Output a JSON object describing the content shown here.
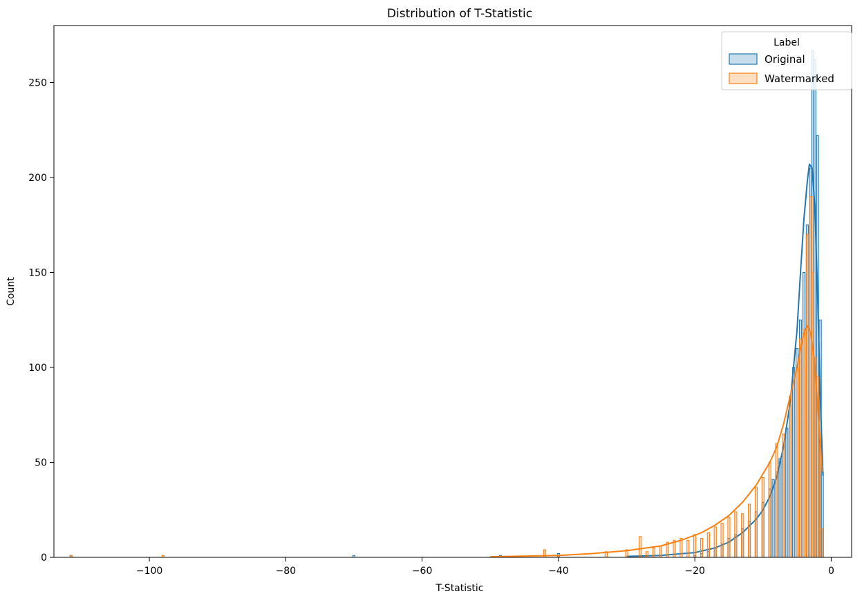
{
  "chart_data": {
    "type": "histogram",
    "title": "Distribution of T-Statistic",
    "xlabel": "T-Statistic",
    "ylabel": "Count",
    "xlim": [
      -114,
      3
    ],
    "ylim": [
      0,
      280
    ],
    "xticks": [
      -100,
      -80,
      -60,
      -40,
      -20,
      0
    ],
    "xtick_labels": [
      "−100",
      "−80",
      "−60",
      "−40",
      "−20",
      "0"
    ],
    "yticks": [
      0,
      50,
      100,
      150,
      200,
      250
    ],
    "yticks_labels": [
      "0",
      "50",
      "100",
      "150",
      "200",
      "250"
    ],
    "grid": false,
    "legend": {
      "title": "Label",
      "placement": "top-right",
      "entries": [
        "Original",
        "Watermarked"
      ]
    },
    "colors": {
      "Original": "#1f77b4",
      "Watermarked": "#ff7f0e"
    },
    "series": [
      {
        "name": "Original",
        "bins": [
          [
            -111.5,
            1
          ],
          [
            -70,
            1
          ],
          [
            -48.5,
            1
          ],
          [
            -40,
            2
          ],
          [
            -20,
            1
          ],
          [
            -19,
            2
          ],
          [
            -18,
            3
          ],
          [
            -17,
            5
          ],
          [
            -16,
            7
          ],
          [
            -15,
            10
          ],
          [
            -14,
            12
          ],
          [
            -13,
            15
          ],
          [
            -12,
            19
          ],
          [
            -11,
            24
          ],
          [
            -10,
            29
          ],
          [
            -9,
            36
          ],
          [
            -8.5,
            41
          ],
          [
            -8,
            45
          ],
          [
            -7.5,
            52
          ],
          [
            -7,
            58
          ],
          [
            -6.5,
            68
          ],
          [
            -6,
            80
          ],
          [
            -5.5,
            100
          ],
          [
            -5,
            110
          ],
          [
            -4.5,
            125
          ],
          [
            -4,
            150
          ],
          [
            -3.5,
            175
          ],
          [
            -3,
            205
          ],
          [
            -2.7,
            267
          ],
          [
            -2.4,
            262
          ],
          [
            -2,
            222
          ],
          [
            -1.6,
            125
          ],
          [
            -1.3,
            45
          ]
        ],
        "kde": [
          [
            -30,
            0.5
          ],
          [
            -25,
            1
          ],
          [
            -20,
            2.5
          ],
          [
            -17,
            5
          ],
          [
            -15,
            8
          ],
          [
            -13,
            13
          ],
          [
            -11,
            20
          ],
          [
            -10,
            25
          ],
          [
            -9,
            32
          ],
          [
            -8,
            42
          ],
          [
            -7,
            58
          ],
          [
            -6,
            82
          ],
          [
            -5,
            120
          ],
          [
            -4.5,
            150
          ],
          [
            -4,
            178
          ],
          [
            -3.5,
            198
          ],
          [
            -3.2,
            207
          ],
          [
            -2.8,
            205
          ],
          [
            -2.4,
            185
          ],
          [
            -2,
            140
          ],
          [
            -1.6,
            85
          ],
          [
            -1.2,
            43
          ]
        ]
      },
      {
        "name": "Watermarked",
        "bins": [
          [
            -111.5,
            1
          ],
          [
            -98,
            1
          ],
          [
            -42,
            4
          ],
          [
            -40,
            1
          ],
          [
            -33,
            3
          ],
          [
            -30,
            4
          ],
          [
            -28,
            11
          ],
          [
            -27,
            3
          ],
          [
            -26,
            5
          ],
          [
            -25,
            6
          ],
          [
            -24,
            8
          ],
          [
            -23,
            9
          ],
          [
            -22,
            10
          ],
          [
            -21,
            9
          ],
          [
            -20,
            12
          ],
          [
            -19,
            10
          ],
          [
            -18,
            13
          ],
          [
            -17,
            16
          ],
          [
            -16,
            18
          ],
          [
            -15,
            21
          ],
          [
            -14,
            24
          ],
          [
            -13,
            23
          ],
          [
            -12,
            28
          ],
          [
            -11,
            37
          ],
          [
            -10,
            42
          ],
          [
            -9,
            50
          ],
          [
            -8,
            60
          ],
          [
            -7,
            65
          ],
          [
            -6,
            85
          ],
          [
            -5,
            100
          ],
          [
            -4.5,
            115
          ],
          [
            -4,
            120
          ],
          [
            -3.5,
            170
          ],
          [
            -3,
            190
          ],
          [
            -2.7,
            150
          ],
          [
            -2.3,
            105
          ],
          [
            -2,
            95
          ],
          [
            -1.7,
            60
          ],
          [
            -1.4,
            15
          ]
        ],
        "kde": [
          [
            -50,
            0.3
          ],
          [
            -40,
            1
          ],
          [
            -35,
            2
          ],
          [
            -30,
            3.5
          ],
          [
            -25,
            6
          ],
          [
            -22,
            9
          ],
          [
            -19,
            13
          ],
          [
            -17,
            17
          ],
          [
            -15,
            22
          ],
          [
            -13,
            29
          ],
          [
            -11,
            38
          ],
          [
            -9,
            50
          ],
          [
            -8,
            58
          ],
          [
            -7,
            70
          ],
          [
            -6,
            85
          ],
          [
            -5,
            100
          ],
          [
            -4.5,
            110
          ],
          [
            -4,
            118
          ],
          [
            -3.5,
            122
          ],
          [
            -3,
            118
          ],
          [
            -2.5,
            105
          ],
          [
            -2,
            80
          ],
          [
            -1.6,
            60
          ],
          [
            -1.3,
            45
          ]
        ]
      }
    ]
  }
}
